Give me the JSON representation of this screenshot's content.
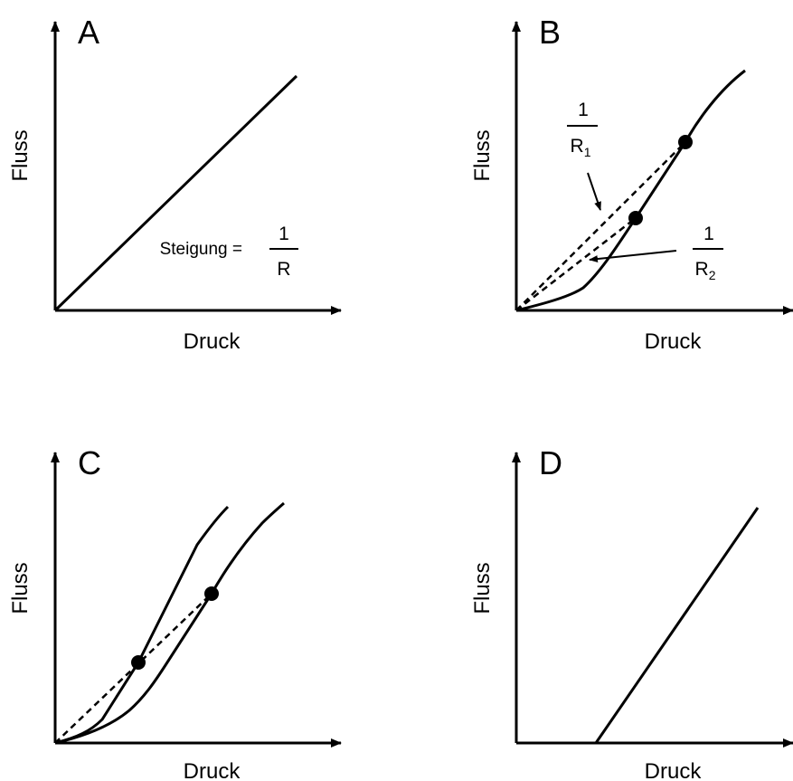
{
  "axis": {
    "x_label": "Druck",
    "y_label": "Fluss"
  },
  "panels": {
    "a": {
      "letter": "A",
      "slope_label": "Steigung =",
      "frac_num": "1",
      "frac_den": "R"
    },
    "b": {
      "letter": "B",
      "r1_num": "1",
      "r1_den": "R",
      "r1_sub": "1",
      "r2_num": "1",
      "r2_den": "R",
      "r2_sub": "2"
    },
    "c": {
      "letter": "C"
    },
    "d": {
      "letter": "D"
    }
  },
  "colors": {
    "ink": "#000000",
    "background": "#ffffff"
  }
}
